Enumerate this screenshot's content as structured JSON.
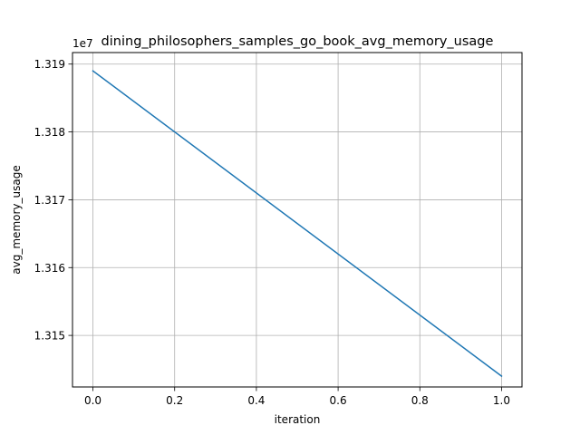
{
  "chart_data": {
    "type": "line",
    "title": "dining_philosophers_samples_go_book_avg_memory_usage",
    "xlabel": "iteration",
    "ylabel": "avg_memory_usage",
    "y_offset_label": "1e7",
    "grid": true,
    "xlim": [
      -0.05,
      1.05
    ],
    "ylim": [
      13142400,
      13191700
    ],
    "x_ticks": [
      0.0,
      0.2,
      0.4,
      0.6,
      0.8,
      1.0
    ],
    "x_tick_labels": [
      "0.0",
      "0.2",
      "0.4",
      "0.6",
      "0.8",
      "1.0"
    ],
    "y_ticks": [
      13150000,
      13160000,
      13170000,
      13180000,
      13190000
    ],
    "y_tick_labels": [
      "1.315",
      "1.316",
      "1.317",
      "1.318",
      "1.319"
    ],
    "series": [
      {
        "color": "#1f77b4",
        "x": [
          0.0,
          1.0
        ],
        "y": [
          13189000,
          13144000
        ]
      }
    ]
  }
}
